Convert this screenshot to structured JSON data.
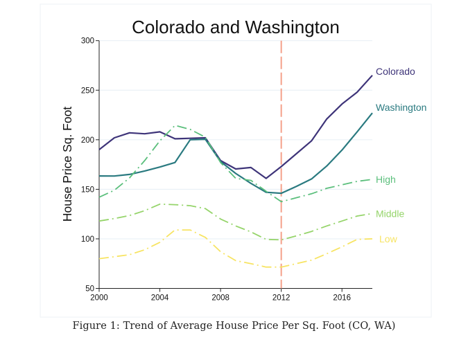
{
  "chart_data": {
    "type": "line",
    "title": "Colorado and Washington",
    "xlabel": "",
    "ylabel": "House Price Sq. Foot",
    "xlim": [
      2000,
      2018
    ],
    "ylim": [
      50,
      300
    ],
    "xticks": [
      2000,
      2004,
      2008,
      2012,
      2016
    ],
    "xtick_labels": [
      "2000",
      "2004",
      "2008",
      "2012",
      "2016"
    ],
    "yticks": [
      50,
      100,
      150,
      200,
      250,
      300
    ],
    "ytick_labels": [
      "50",
      "100",
      "150",
      "200",
      "250",
      "300"
    ],
    "grid": true,
    "legend": "line-end labels (right)",
    "reference_line": {
      "x": 2012,
      "style": "dashed",
      "color": "#f4a08a"
    },
    "x": [
      2000,
      2001,
      2002,
      2003,
      2004,
      2005,
      2006,
      2007,
      2008,
      2009,
      2010,
      2011,
      2012,
      2013,
      2014,
      2015,
      2016,
      2017,
      2018
    ],
    "series": [
      {
        "name": "Colorado",
        "style": "solid",
        "color": "#3e3479",
        "values": [
          190,
          202,
          207,
          206,
          208,
          201,
          201.5,
          202,
          179,
          170.5,
          172,
          161,
          173,
          186,
          199,
          221,
          236,
          248,
          265
        ]
      },
      {
        "name": "Washington",
        "style": "solid",
        "color": "#2a7a80",
        "values": [
          163.5,
          163.4,
          165,
          168.5,
          172.5,
          177,
          200,
          200.5,
          178,
          166,
          156,
          147,
          146,
          153,
          160.5,
          173.5,
          189.5,
          208,
          227
        ]
      },
      {
        "name": "High",
        "style": "dashdot",
        "color": "#5bbf7c",
        "values": [
          142,
          149,
          161.5,
          179,
          199,
          214.5,
          210.5,
          202.5,
          177,
          161,
          159,
          148,
          137.5,
          141.5,
          145.5,
          151,
          154.5,
          158,
          160
        ]
      },
      {
        "name": "Middle",
        "style": "dashdot",
        "color": "#95d46a",
        "values": [
          118,
          120.5,
          123.5,
          128.5,
          135,
          134.5,
          133.5,
          130.5,
          120,
          113,
          107,
          99.5,
          99,
          103,
          107.5,
          113,
          118,
          123,
          125.5
        ]
      },
      {
        "name": "Low",
        "style": "dashdot",
        "color": "#f7e463",
        "values": [
          80,
          82,
          84,
          89,
          96.5,
          109,
          109,
          101.5,
          87,
          78,
          75,
          71.5,
          71.5,
          75,
          78.5,
          85,
          92,
          99.5,
          100
        ]
      }
    ]
  },
  "caption": "Figure 1: Trend of Average House Price Per Sq. Foot (CO, WA)"
}
